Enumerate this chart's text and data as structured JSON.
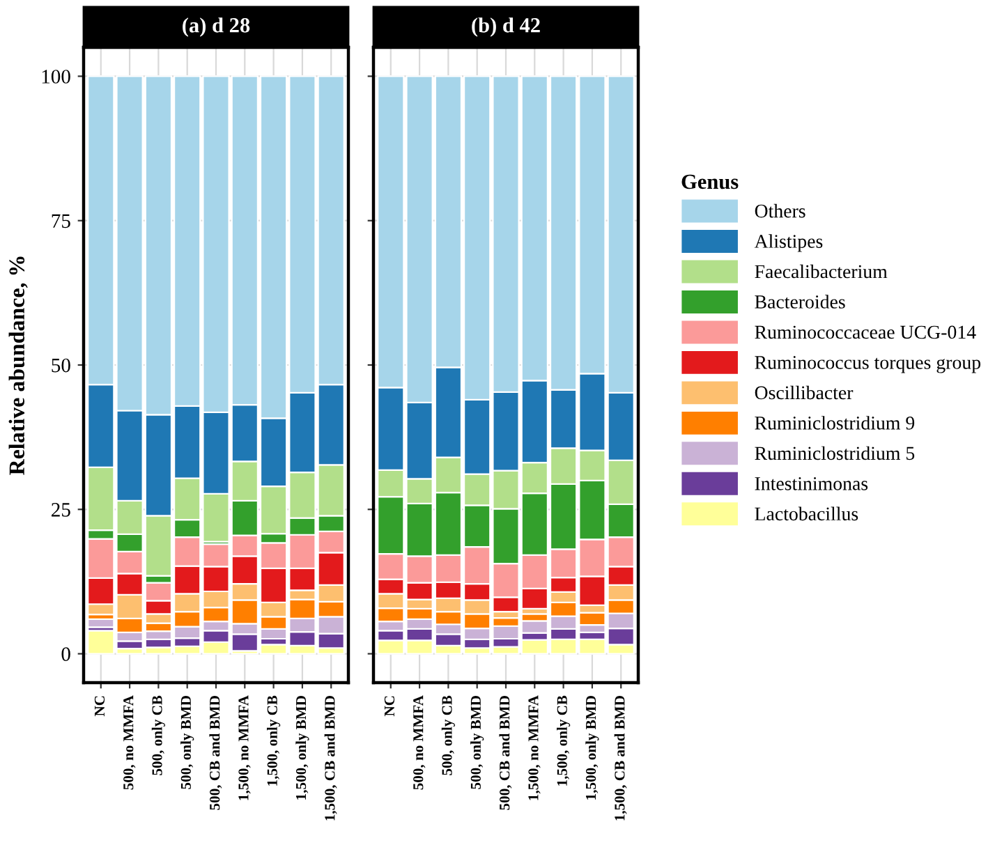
{
  "chart_data": [
    {
      "type": "bar",
      "title": "(a) d 28",
      "ylabel": "Relative abundance, %",
      "legend_title": "Genus",
      "stacked": true,
      "legend": "right",
      "grid": true,
      "categories": [
        "NC",
        "500, no MMFA",
        "500, only CB",
        "500, only BMD",
        "500, CB and BMD",
        "1,500, no MMFA",
        "1,500, only CB",
        "1,500, only BMD",
        "1,500, CB and BMD"
      ],
      "ylim": [
        -5,
        105
      ],
      "yticks": [
        0,
        25,
        50,
        75,
        100
      ],
      "series": [
        {
          "name": "Lactobacillus",
          "color": "#ffff99",
          "values": [
            4.0,
            0.9,
            1.1,
            1.3,
            2.0,
            0.5,
            1.6,
            1.4,
            1.0
          ]
        },
        {
          "name": "Intestinimonas",
          "color": "#6a3d9a",
          "values": [
            0.6,
            1.3,
            1.4,
            1.4,
            2.0,
            2.9,
            1.0,
            2.4,
            2.5
          ]
        },
        {
          "name": "Ruminiclostridium 5",
          "color": "#cab2d6",
          "values": [
            1.4,
            1.5,
            1.4,
            2.0,
            1.6,
            1.8,
            1.7,
            2.3,
            2.9
          ]
        },
        {
          "name": "Ruminiclostridium 9",
          "color": "#ff7f00",
          "values": [
            0.8,
            2.4,
            1.4,
            2.6,
            2.4,
            4.1,
            2.1,
            3.3,
            2.6
          ]
        },
        {
          "name": "Oscillibacter",
          "color": "#fdbf6f",
          "values": [
            1.8,
            4.1,
            1.6,
            3.1,
            2.8,
            2.8,
            2.5,
            1.6,
            2.9
          ]
        },
        {
          "name": "Ruminococcus torques group",
          "color": "#e31a1c",
          "values": [
            4.5,
            3.7,
            2.3,
            4.8,
            4.3,
            4.8,
            5.9,
            3.8,
            5.6
          ]
        },
        {
          "name": "Ruminococcaceae UCG-014",
          "color": "#fb9a99",
          "values": [
            6.8,
            3.8,
            3.1,
            5.0,
            3.9,
            3.6,
            4.4,
            5.8,
            3.7
          ]
        },
        {
          "name": "Bacteroides",
          "color": "#33a02c",
          "values": [
            1.5,
            3.0,
            1.2,
            3.0,
            0.4,
            6.0,
            1.6,
            2.9,
            2.7
          ]
        },
        {
          "name": "Faecalibacterium",
          "color": "#b2df8a",
          "values": [
            10.9,
            5.8,
            10.4,
            7.2,
            8.3,
            6.8,
            8.2,
            7.9,
            8.8
          ]
        },
        {
          "name": "Alistipes",
          "color": "#1f78b4",
          "values": [
            14.3,
            15.6,
            17.5,
            12.5,
            14.1,
            9.8,
            11.8,
            13.8,
            13.9
          ]
        },
        {
          "name": "Others",
          "color": "#a6d5ea",
          "values": [
            53.4,
            57.9,
            58.6,
            57.1,
            58.2,
            56.9,
            59.2,
            54.8,
            53.4
          ]
        }
      ]
    },
    {
      "type": "bar",
      "title": "(b) d 42",
      "stacked": true,
      "grid": true,
      "tick_labels": "x",
      "categories": [
        "NC",
        "500, no MMFA",
        "500, only CB",
        "500, only BMD",
        "500, CB and BMD",
        "1,500, no MMFA",
        "1,500, only CB",
        "1,500, only BMD",
        "1,500, CB and BMD"
      ],
      "ylim": [
        -5,
        105
      ],
      "yticks": [
        0,
        25,
        50,
        75,
        100
      ],
      "series": [
        {
          "color": "#ffff99",
          "values": [
            2.3,
            2.3,
            1.4,
            1.0,
            1.2,
            2.4,
            2.5,
            2.5,
            1.6
          ]
        },
        {
          "color": "#6a3d9a",
          "values": [
            1.7,
            2.0,
            2.0,
            1.5,
            1.4,
            1.2,
            1.8,
            1.2,
            2.8
          ]
        },
        {
          "color": "#cab2d6",
          "values": [
            1.6,
            1.7,
            1.7,
            1.9,
            2.2,
            2.1,
            2.2,
            1.3,
            2.6
          ]
        },
        {
          "color": "#ff7f00",
          "values": [
            2.3,
            1.8,
            2.2,
            2.5,
            1.4,
            1.2,
            2.4,
            2.1,
            2.3
          ]
        },
        {
          "color": "#fdbf6f",
          "values": [
            2.5,
            1.6,
            2.3,
            2.4,
            1.1,
            0.9,
            1.8,
            1.3,
            2.6
          ]
        },
        {
          "color": "#e31a1c",
          "values": [
            2.5,
            2.9,
            2.8,
            2.8,
            2.5,
            3.5,
            2.5,
            5.0,
            3.2
          ]
        },
        {
          "color": "#fb9a99",
          "values": [
            4.4,
            4.6,
            4.7,
            6.4,
            5.8,
            5.8,
            4.9,
            6.4,
            5.1
          ]
        },
        {
          "color": "#33a02c",
          "values": [
            9.9,
            9.1,
            10.8,
            7.2,
            9.5,
            10.7,
            11.3,
            10.2,
            5.7
          ]
        },
        {
          "color": "#b2df8a",
          "values": [
            4.6,
            4.3,
            6.1,
            5.4,
            6.6,
            5.3,
            6.2,
            5.2,
            7.6
          ]
        },
        {
          "color": "#1f78b4",
          "values": [
            14.3,
            13.2,
            15.6,
            12.9,
            13.6,
            14.2,
            10.1,
            13.3,
            11.7
          ]
        },
        {
          "color": "#a6d5ea",
          "values": [
            53.9,
            56.5,
            50.4,
            56.0,
            54.7,
            52.7,
            54.3,
            51.5,
            54.8
          ]
        }
      ]
    }
  ]
}
